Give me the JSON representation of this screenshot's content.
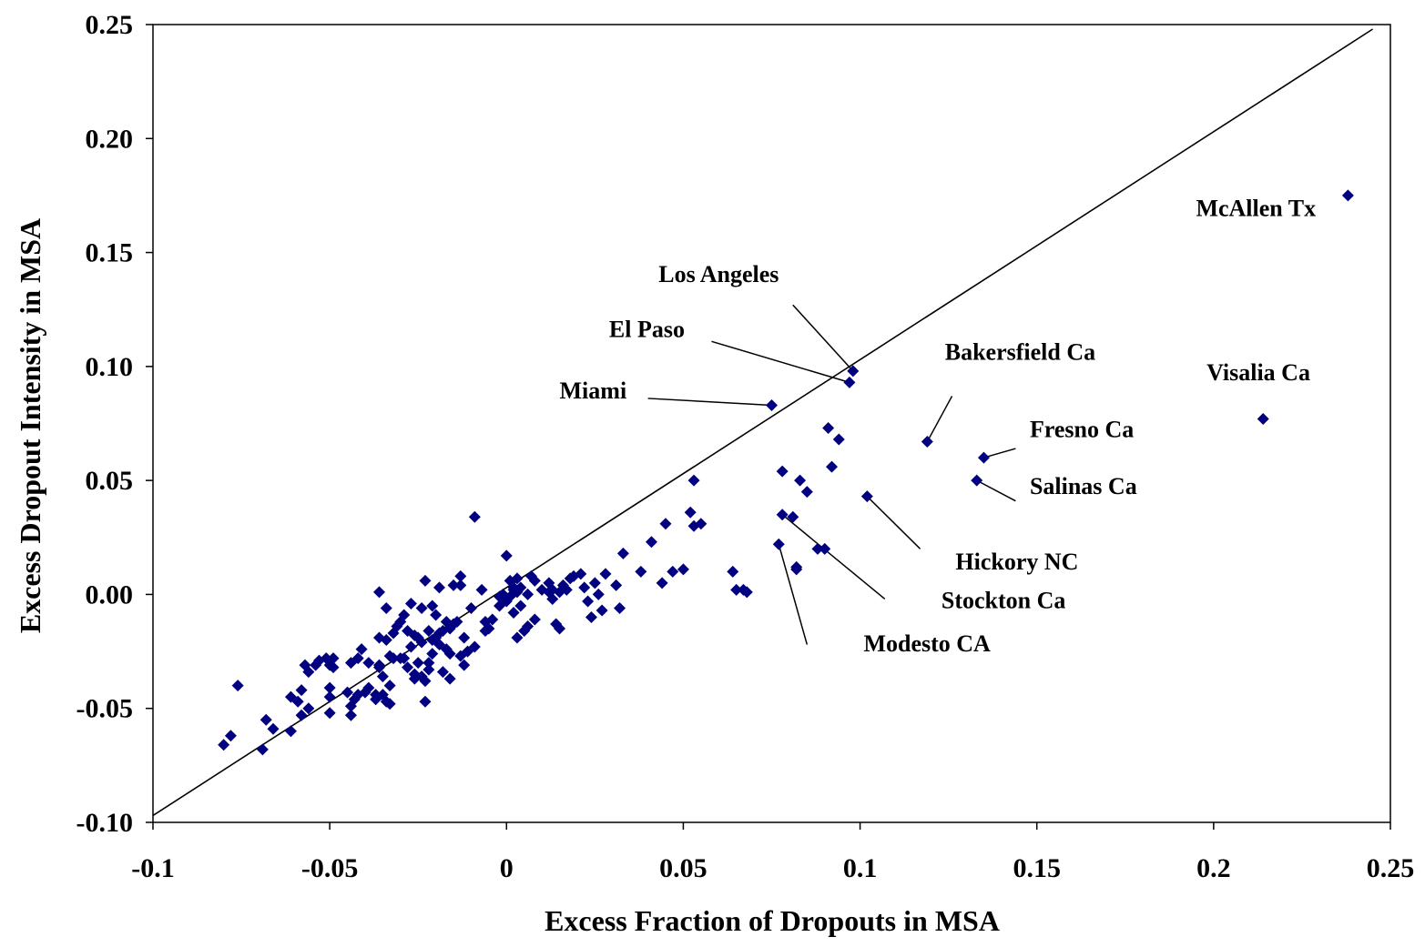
{
  "chart_data": {
    "type": "scatter",
    "xlabel": "Excess Fraction of Dropouts in MSA",
    "ylabel": "Excess Dropout Intensity in MSA",
    "xlim": [
      -0.1,
      0.25
    ],
    "ylim": [
      -0.1,
      0.25
    ],
    "x_ticks": [
      "-0.1",
      "-0.05",
      "0",
      "0.05",
      "0.1",
      "0.15",
      "0.2",
      "0.25"
    ],
    "x_tick_values": [
      -0.1,
      -0.05,
      0,
      0.05,
      0.1,
      0.15,
      0.2,
      0.25
    ],
    "y_ticks": [
      "-0.10",
      "-0.05",
      "0.00",
      "0.05",
      "0.10",
      "0.15",
      "0.20",
      "0.25"
    ],
    "y_tick_values": [
      -0.1,
      -0.05,
      0.0,
      0.05,
      0.1,
      0.15,
      0.2,
      0.25
    ],
    "grid": false,
    "legend": "none",
    "marker_color": "#000080",
    "reference_line": {
      "x1": -0.1,
      "y1": -0.097,
      "x2": 0.245,
      "y2": 0.248
    },
    "points": [
      [
        -0.08,
        -0.066
      ],
      [
        -0.078,
        -0.062
      ],
      [
        -0.076,
        -0.04
      ],
      [
        -0.069,
        -0.068
      ],
      [
        -0.068,
        -0.055
      ],
      [
        -0.066,
        -0.059
      ],
      [
        -0.061,
        -0.06
      ],
      [
        -0.061,
        -0.045
      ],
      [
        -0.059,
        -0.047
      ],
      [
        -0.058,
        -0.053
      ],
      [
        -0.058,
        -0.042
      ],
      [
        -0.057,
        -0.031
      ],
      [
        -0.056,
        -0.05
      ],
      [
        -0.056,
        -0.034
      ],
      [
        -0.054,
        -0.031
      ],
      [
        -0.053,
        -0.029
      ],
      [
        -0.051,
        -0.028
      ],
      [
        -0.05,
        -0.031
      ],
      [
        -0.05,
        -0.052
      ],
      [
        -0.05,
        -0.045
      ],
      [
        -0.05,
        -0.041
      ],
      [
        -0.049,
        -0.028
      ],
      [
        -0.049,
        -0.032
      ],
      [
        -0.045,
        -0.043
      ],
      [
        -0.044,
        -0.053
      ],
      [
        -0.044,
        -0.049
      ],
      [
        -0.044,
        -0.03
      ],
      [
        -0.043,
        -0.046
      ],
      [
        -0.042,
        -0.044
      ],
      [
        -0.042,
        -0.028
      ],
      [
        -0.041,
        -0.024
      ],
      [
        -0.04,
        -0.043
      ],
      [
        -0.039,
        -0.03
      ],
      [
        -0.039,
        -0.041
      ],
      [
        -0.037,
        -0.044
      ],
      [
        -0.037,
        -0.046
      ],
      [
        -0.036,
        -0.031
      ],
      [
        -0.036,
        -0.032
      ],
      [
        -0.036,
        -0.019
      ],
      [
        -0.036,
        0.001
      ],
      [
        -0.035,
        -0.036
      ],
      [
        -0.035,
        -0.044
      ],
      [
        -0.034,
        -0.047
      ],
      [
        -0.034,
        -0.006
      ],
      [
        -0.034,
        -0.02
      ],
      [
        -0.033,
        -0.048
      ],
      [
        -0.033,
        -0.027
      ],
      [
        -0.033,
        -0.04
      ],
      [
        -0.032,
        -0.028
      ],
      [
        -0.032,
        -0.017
      ],
      [
        -0.031,
        -0.014
      ],
      [
        -0.03,
        -0.012
      ],
      [
        -0.03,
        -0.028
      ],
      [
        -0.029,
        -0.009
      ],
      [
        -0.029,
        -0.028
      ],
      [
        -0.028,
        -0.016
      ],
      [
        -0.028,
        -0.032
      ],
      [
        -0.027,
        -0.004
      ],
      [
        -0.027,
        -0.023
      ],
      [
        -0.026,
        -0.035
      ],
      [
        -0.026,
        -0.037
      ],
      [
        -0.026,
        -0.018
      ],
      [
        -0.025,
        -0.019
      ],
      [
        -0.025,
        -0.03
      ],
      [
        -0.024,
        -0.036
      ],
      [
        -0.024,
        -0.021
      ],
      [
        -0.024,
        -0.006
      ],
      [
        -0.023,
        -0.038
      ],
      [
        -0.023,
        -0.047
      ],
      [
        -0.023,
        0.006
      ],
      [
        -0.022,
        -0.03
      ],
      [
        -0.022,
        -0.033
      ],
      [
        -0.022,
        -0.016
      ],
      [
        -0.021,
        -0.02
      ],
      [
        -0.021,
        -0.005
      ],
      [
        -0.021,
        -0.026
      ],
      [
        -0.02,
        -0.019
      ],
      [
        -0.02,
        -0.009
      ],
      [
        -0.019,
        -0.022
      ],
      [
        -0.019,
        -0.017
      ],
      [
        -0.019,
        0.003
      ],
      [
        -0.018,
        -0.034
      ],
      [
        -0.018,
        -0.016
      ],
      [
        -0.017,
        -0.024
      ],
      [
        -0.017,
        -0.012
      ],
      [
        -0.016,
        -0.026
      ],
      [
        -0.016,
        -0.015
      ],
      [
        -0.016,
        -0.037
      ],
      [
        -0.015,
        -0.013
      ],
      [
        -0.015,
        0.004
      ],
      [
        -0.014,
        -0.012
      ],
      [
        -0.013,
        -0.027
      ],
      [
        -0.013,
        0.008
      ],
      [
        -0.013,
        0.004
      ],
      [
        -0.012,
        -0.019
      ],
      [
        -0.012,
        -0.031
      ],
      [
        -0.011,
        -0.025
      ],
      [
        -0.01,
        -0.006
      ],
      [
        -0.009,
        0.034
      ],
      [
        -0.009,
        -0.023
      ],
      [
        -0.007,
        0.002
      ],
      [
        -0.006,
        -0.016
      ],
      [
        -0.006,
        -0.012
      ],
      [
        -0.005,
        -0.015
      ],
      [
        -0.004,
        -0.011
      ],
      [
        -0.002,
        -0.001
      ],
      [
        -0.002,
        -0.005
      ],
      [
        -0.001,
        0.0
      ],
      [
        0.0,
        0.017
      ],
      [
        0.0,
        -0.003
      ],
      [
        0.001,
        0.006
      ],
      [
        0.001,
        -0.001
      ],
      [
        0.002,
        -0.008
      ],
      [
        0.002,
        0.003
      ],
      [
        0.002,
        0.002
      ],
      [
        0.003,
        0.007
      ],
      [
        0.003,
        0.001
      ],
      [
        0.003,
        -0.019
      ],
      [
        0.004,
        -0.005
      ],
      [
        0.004,
        0.003
      ],
      [
        0.005,
        -0.016
      ],
      [
        0.006,
        0.0
      ],
      [
        0.006,
        -0.014
      ],
      [
        0.007,
        0.008
      ],
      [
        0.008,
        0.006
      ],
      [
        0.008,
        -0.011
      ],
      [
        0.01,
        0.002
      ],
      [
        0.012,
        0.001
      ],
      [
        0.012,
        0.005
      ],
      [
        0.013,
        -0.002
      ],
      [
        0.013,
        0.002
      ],
      [
        0.014,
        -0.013
      ],
      [
        0.015,
        -0.015
      ],
      [
        0.015,
        0.001
      ],
      [
        0.016,
        0.004
      ],
      [
        0.017,
        0.002
      ],
      [
        0.018,
        0.007
      ],
      [
        0.019,
        0.008
      ],
      [
        0.021,
        0.009
      ],
      [
        0.022,
        0.003
      ],
      [
        0.023,
        -0.003
      ],
      [
        0.024,
        -0.01
      ],
      [
        0.025,
        0.005
      ],
      [
        0.026,
        0.0
      ],
      [
        0.027,
        -0.007
      ],
      [
        0.028,
        0.009
      ],
      [
        0.031,
        0.004
      ],
      [
        0.032,
        -0.006
      ],
      [
        0.033,
        0.018
      ],
      [
        0.038,
        0.01
      ],
      [
        0.041,
        0.023
      ],
      [
        0.044,
        0.005
      ],
      [
        0.045,
        0.031
      ],
      [
        0.047,
        0.01
      ],
      [
        0.05,
        0.011
      ],
      [
        0.052,
        0.036
      ],
      [
        0.053,
        0.03
      ],
      [
        0.053,
        0.05
      ],
      [
        0.055,
        0.031
      ],
      [
        0.064,
        0.01
      ],
      [
        0.065,
        0.002
      ],
      [
        0.067,
        0.002
      ],
      [
        0.068,
        0.001
      ],
      [
        0.078,
        0.054
      ],
      [
        0.081,
        0.034
      ],
      [
        0.082,
        0.011
      ],
      [
        0.082,
        0.012
      ],
      [
        0.083,
        0.05
      ],
      [
        0.085,
        0.045
      ],
      [
        0.088,
        0.02
      ],
      [
        0.09,
        0.02
      ],
      [
        0.091,
        0.073
      ],
      [
        0.092,
        0.056
      ],
      [
        0.094,
        0.068
      ],
      [
        0.075,
        0.083
      ],
      [
        0.097,
        0.093
      ],
      [
        0.098,
        0.098
      ],
      [
        0.077,
        0.022
      ],
      [
        0.078,
        0.035
      ],
      [
        0.102,
        0.043
      ],
      [
        0.119,
        0.067
      ],
      [
        0.133,
        0.05
      ],
      [
        0.135,
        0.06
      ],
      [
        0.214,
        0.077
      ],
      [
        0.238,
        0.175
      ]
    ],
    "annotations": [
      {
        "text": "McAllen Tx",
        "point": [
          0.238,
          0.175
        ],
        "label_at": [
          0.195,
          0.166
        ],
        "line": false
      },
      {
        "text": "Los Angeles",
        "point": [
          0.098,
          0.098
        ],
        "label_at": [
          0.043,
          0.137
        ],
        "line": true,
        "line_from": [
          0.081,
          0.127
        ]
      },
      {
        "text": "El Paso",
        "point": [
          0.097,
          0.093
        ],
        "label_at": [
          0.029,
          0.113
        ],
        "line": true,
        "line_from": [
          0.058,
          0.111
        ]
      },
      {
        "text": "Miami",
        "point": [
          0.075,
          0.083
        ],
        "label_at": [
          0.015,
          0.086
        ],
        "line": true,
        "line_from": [
          0.04,
          0.086
        ]
      },
      {
        "text": "Bakersfield Ca",
        "point": [
          0.119,
          0.067
        ],
        "label_at": [
          0.124,
          0.103
        ],
        "line": true,
        "line_from": [
          0.126,
          0.087
        ]
      },
      {
        "text": "Visalia Ca",
        "point": [
          0.214,
          0.077
        ],
        "label_at": [
          0.198,
          0.094
        ],
        "line": false
      },
      {
        "text": "Fresno Ca",
        "point": [
          0.135,
          0.06
        ],
        "label_at": [
          0.148,
          0.069
        ],
        "line": true,
        "line_from": [
          0.144,
          0.064
        ]
      },
      {
        "text": "Salinas Ca",
        "point": [
          0.133,
          0.05
        ],
        "label_at": [
          0.148,
          0.044
        ],
        "line": true,
        "line_from": [
          0.144,
          0.041
        ]
      },
      {
        "text": "Hickory NC",
        "point": [
          0.102,
          0.043
        ],
        "label_at": [
          0.127,
          0.011
        ],
        "line": true,
        "line_from": [
          0.117,
          0.02
        ]
      },
      {
        "text": "Stockton Ca",
        "point": [
          0.078,
          0.035
        ],
        "label_at": [
          0.123,
          -0.006
        ],
        "line": true,
        "line_from": [
          0.107,
          -0.002
        ]
      },
      {
        "text": "Modesto CA",
        "point": [
          0.077,
          0.022
        ],
        "label_at": [
          0.101,
          -0.025
        ],
        "line": true,
        "line_from": [
          0.085,
          -0.022
        ]
      }
    ]
  }
}
